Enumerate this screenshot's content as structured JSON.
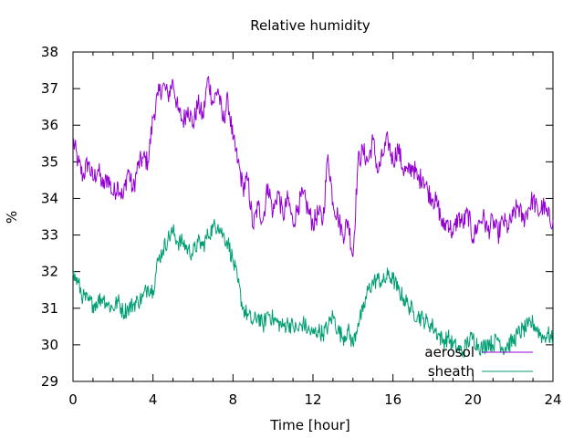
{
  "chart_data": {
    "type": "line",
    "title": "Relative humidity",
    "xlabel": "Time [hour]",
    "ylabel": "%",
    "xlim": [
      0,
      24
    ],
    "ylim": [
      29,
      38
    ],
    "x_ticks": [
      0,
      4,
      8,
      12,
      16,
      20,
      24
    ],
    "y_ticks": [
      29,
      30,
      31,
      32,
      33,
      34,
      35,
      36,
      37,
      38
    ],
    "grid": false,
    "legend_position": "bottom-right",
    "series": [
      {
        "name": "aerosol",
        "color": "#9400d3",
        "x": [
          0,
          0.25,
          0.5,
          0.75,
          1,
          1.25,
          1.5,
          1.75,
          2,
          2.25,
          2.5,
          2.75,
          3,
          3.25,
          3.5,
          3.75,
          4,
          4.25,
          4.5,
          4.75,
          5,
          5.25,
          5.5,
          5.75,
          6,
          6.25,
          6.5,
          6.75,
          7,
          7.25,
          7.5,
          7.75,
          8,
          8.25,
          8.5,
          8.75,
          9,
          9.25,
          9.5,
          9.75,
          10,
          10.25,
          10.5,
          10.75,
          11,
          11.25,
          11.5,
          11.75,
          12,
          12.25,
          12.5,
          12.75,
          13,
          13.25,
          13.5,
          13.75,
          14,
          14.25,
          14.5,
          14.75,
          15,
          15.25,
          15.5,
          15.75,
          16,
          16.25,
          16.5,
          16.75,
          17,
          17.25,
          17.5,
          17.75,
          18,
          18.25,
          18.5,
          18.75,
          19,
          19.25,
          19.5,
          19.75,
          20,
          20.25,
          20.5,
          20.75,
          21,
          21.25,
          21.5,
          21.75,
          22,
          22.25,
          22.5,
          22.75,
          23,
          23.25,
          23.5,
          23.75,
          24
        ],
        "values": [
          35.6,
          35.0,
          34.6,
          35.0,
          34.5,
          34.8,
          34.3,
          34.6,
          34.1,
          34.4,
          34.0,
          34.8,
          34.2,
          34.9,
          35.1,
          35.0,
          36.2,
          36.8,
          37.1,
          36.8,
          37.2,
          36.4,
          36.1,
          36.5,
          36.0,
          36.6,
          36.2,
          37.3,
          36.6,
          37.0,
          36.1,
          36.7,
          35.6,
          35.0,
          34.3,
          34.5,
          33.2,
          33.8,
          33.4,
          34.4,
          33.6,
          34.2,
          33.5,
          34.0,
          33.3,
          33.8,
          34.1,
          33.7,
          33.3,
          33.6,
          33.4,
          35.2,
          33.9,
          33.5,
          33.0,
          33.4,
          32.4,
          35.0,
          35.3,
          35.0,
          35.6,
          34.7,
          35.2,
          35.6,
          35.0,
          35.4,
          34.8,
          34.7,
          34.9,
          34.5,
          34.6,
          34.2,
          34.0,
          33.8,
          33.2,
          33.4,
          33.0,
          33.5,
          33.3,
          33.6,
          32.9,
          33.3,
          33.5,
          33.1,
          33.4,
          33.0,
          33.4,
          33.2,
          33.5,
          33.8,
          33.4,
          33.7,
          34.0,
          33.6,
          33.8,
          33.5,
          33.4
        ],
        "spread": 0.3
      },
      {
        "name": "sheath",
        "color": "#009e73",
        "x": [
          0,
          0.25,
          0.5,
          0.75,
          1,
          1.25,
          1.5,
          1.75,
          2,
          2.25,
          2.5,
          2.75,
          3,
          3.25,
          3.5,
          3.75,
          4,
          4.25,
          4.5,
          4.75,
          5,
          5.25,
          5.5,
          5.75,
          6,
          6.25,
          6.5,
          6.75,
          7,
          7.25,
          7.5,
          7.75,
          8,
          8.25,
          8.5,
          8.75,
          9,
          9.25,
          9.5,
          9.75,
          10,
          10.25,
          10.5,
          10.75,
          11,
          11.25,
          11.5,
          11.75,
          12,
          12.25,
          12.5,
          12.75,
          13,
          13.25,
          13.5,
          13.75,
          14,
          14.25,
          14.5,
          14.75,
          15,
          15.25,
          15.5,
          15.75,
          16,
          16.25,
          16.5,
          16.75,
          17,
          17.25,
          17.5,
          17.75,
          18,
          18.25,
          18.5,
          18.75,
          19,
          19.25,
          19.5,
          19.75,
          20,
          20.25,
          20.5,
          20.75,
          21,
          21.25,
          21.5,
          21.75,
          22,
          22.25,
          22.5,
          22.75,
          23,
          23.25,
          23.5,
          23.75,
          24
        ],
        "values": [
          31.9,
          31.7,
          31.3,
          31.2,
          31.1,
          31.2,
          31.3,
          31.1,
          31.0,
          31.2,
          30.9,
          31.0,
          31.1,
          31.2,
          31.3,
          31.6,
          31.5,
          32.3,
          32.6,
          32.9,
          33.1,
          32.8,
          32.8,
          32.6,
          32.5,
          32.8,
          32.7,
          33.0,
          33.2,
          33.3,
          33.0,
          32.8,
          32.3,
          31.7,
          31.0,
          30.8,
          30.6,
          30.8,
          30.5,
          30.9,
          30.7,
          30.6,
          30.5,
          30.6,
          30.5,
          30.4,
          30.6,
          30.4,
          30.3,
          30.4,
          30.3,
          30.5,
          30.8,
          30.4,
          30.2,
          30.4,
          30.0,
          30.6,
          30.9,
          31.5,
          31.7,
          31.8,
          31.7,
          31.9,
          31.8,
          31.5,
          31.3,
          31.1,
          30.9,
          30.8,
          30.7,
          30.6,
          30.5,
          30.3,
          30.1,
          30.2,
          30.0,
          29.9,
          29.8,
          30.1,
          30.2,
          30.0,
          29.9,
          30.1,
          30.0,
          30.2,
          29.9,
          30.0,
          30.1,
          30.3,
          30.4,
          30.5,
          30.6,
          30.4,
          30.2,
          30.3,
          30.1
        ],
        "spread": 0.25
      }
    ]
  }
}
